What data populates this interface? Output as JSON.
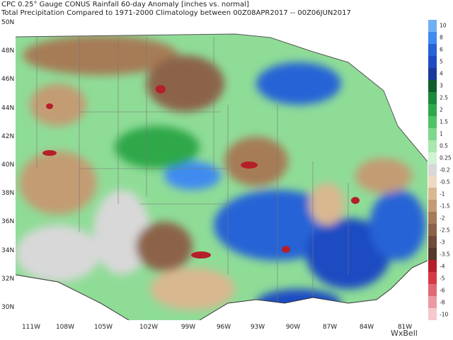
{
  "header": {
    "line1": "CPC 0.25° Gauge CONUS Rainfall 60-day Anomaly [inches vs. normal]",
    "line2": "Total Precipitation Compared to 1971-2000 Climatology between 00Z08APR2017 -- 00Z06JUN2017"
  },
  "latitudes": [
    "50N",
    "48N",
    "46N",
    "44N",
    "42N",
    "40N",
    "38N",
    "36N",
    "34N",
    "32N",
    "30N"
  ],
  "longitudes": [
    "111W",
    "108W",
    "105W",
    "102W",
    "99W",
    "96W",
    "93W",
    "90W",
    "87W",
    "84W",
    "81W"
  ],
  "colorbar": {
    "labels": [
      "10",
      "8",
      "6",
      "5",
      "4",
      "3",
      "2.5",
      "2",
      "1.5",
      "1",
      "0.5",
      "0.25",
      "-0.2",
      "-0.5",
      "-1",
      "-1.5",
      "-2",
      "-2.5",
      "-3",
      "-3.5",
      "-4",
      "-5",
      "-6",
      "-8",
      "-10"
    ],
    "colors": [
      "#6fb0f5",
      "#3f8bf0",
      "#2563d6",
      "#1d4cc2",
      "#1a3a9a",
      "#0f5e2a",
      "#1c8a3a",
      "#2fa84a",
      "#52c265",
      "#7fd88b",
      "#a8e8ae",
      "#d2f2d3",
      "#d8d8d8",
      "#eed9c2",
      "#d9b890",
      "#c39c73",
      "#a67b57",
      "#8c6348",
      "#6f4b39",
      "#57372c",
      "#b51f2a",
      "#d43a44",
      "#e06a74",
      "#eb9aa2",
      "#f5c9cd"
    ]
  },
  "logo": "WxBell"
}
